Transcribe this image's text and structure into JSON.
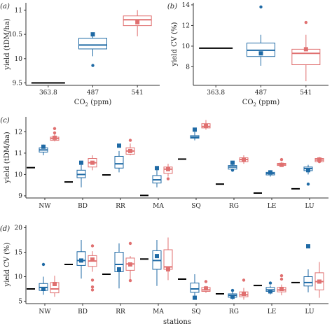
{
  "colors": {
    "co2_487": "#1f6aa5",
    "co2_541": "#e07070",
    "baseline": "#000000"
  },
  "chart_data": [
    {
      "panel_label": "(a)",
      "type": "boxplot",
      "xlabel": "CO2 (ppm)",
      "ylabel": "yield (tDM/ha)",
      "ylim": [
        9.45,
        11.15
      ],
      "yticks": [
        9.5,
        10.0,
        10.5,
        11.0
      ],
      "categories": [
        "363.8",
        "487",
        "541"
      ],
      "baseline": {
        "category": "363.8",
        "value": 9.5
      },
      "boxes": [
        {
          "category": "487",
          "group": "co2_487",
          "whisker_low": 10.05,
          "q1": 10.2,
          "median": 10.28,
          "q3": 10.42,
          "whisker_high": 10.48,
          "mean": 10.5,
          "outliers": [
            9.86
          ]
        },
        {
          "category": "541",
          "group": "co2_541",
          "whisker_low": 10.46,
          "q1": 10.68,
          "median": 10.8,
          "q3": 10.88,
          "whisker_high": 11.0,
          "mean": 10.75,
          "outliers": []
        }
      ]
    },
    {
      "panel_label": "(b)",
      "type": "boxplot",
      "xlabel": "CO2 (ppm)",
      "ylabel": "yield CV (%)",
      "ylim": [
        6.2,
        14.2
      ],
      "yticks": [
        8,
        10,
        12,
        14
      ],
      "categories": [
        "363.8",
        "487",
        "541"
      ],
      "baseline": {
        "category": "363.8",
        "value": 9.8
      },
      "boxes": [
        {
          "category": "487",
          "group": "co2_487",
          "whisker_low": 8.1,
          "q1": 9.0,
          "median": 9.6,
          "q3": 10.3,
          "whisker_high": 11.1,
          "mean": 9.3,
          "outliers": [
            13.8
          ]
        },
        {
          "category": "541",
          "group": "co2_541",
          "whisker_low": 6.6,
          "q1": 8.2,
          "median": 9.3,
          "q3": 9.7,
          "whisker_high": 11.1,
          "mean": 9.7,
          "outliers": [
            12.3
          ]
        }
      ]
    },
    {
      "panel_label": "(c)",
      "type": "boxplot",
      "xlabel": "",
      "ylabel": "yield (tDM/ha)",
      "ylim": [
        8.9,
        12.7
      ],
      "yticks": [
        9,
        10,
        11,
        12
      ],
      "categories": [
        "NW",
        "BD",
        "RR",
        "MA",
        "SQ",
        "RG",
        "LE",
        "LU"
      ],
      "stations": [
        {
          "category": "NW",
          "baseline": 10.32,
          "blue": {
            "whisker_low": 10.9,
            "q1": 11.05,
            "median": 11.15,
            "q3": 11.25,
            "whisker_high": 11.4,
            "mean": 11.3,
            "outliers": []
          },
          "red": {
            "whisker_low": 11.55,
            "q1": 11.6,
            "median": 11.68,
            "q3": 11.75,
            "whisker_high": 11.9,
            "mean": 11.72,
            "outliers": [
              12.15,
              11.95
            ]
          }
        },
        {
          "category": "BD",
          "baseline": 9.65,
          "blue": {
            "whisker_low": 9.4,
            "q1": 9.85,
            "median": 10.0,
            "q3": 10.2,
            "whisker_high": 10.45,
            "mean": 10.55,
            "outliers": []
          },
          "red": {
            "whisker_low": 10.2,
            "q1": 10.35,
            "median": 10.55,
            "q3": 10.75,
            "whisker_high": 10.9,
            "mean": 10.55,
            "outliers": []
          }
        },
        {
          "category": "RR",
          "baseline": 9.98,
          "blue": {
            "whisker_low": 10.1,
            "q1": 10.3,
            "median": 10.5,
            "q3": 10.85,
            "whisker_high": 11.1,
            "mean": 11.35,
            "outliers": []
          },
          "red": {
            "whisker_low": 10.9,
            "q1": 10.95,
            "median": 11.1,
            "q3": 11.25,
            "whisker_high": 11.45,
            "mean": 11.1,
            "outliers": [
              11.6
            ]
          }
        },
        {
          "category": "MA",
          "baseline": 9.02,
          "blue": {
            "whisker_low": 9.4,
            "q1": 9.6,
            "median": 9.75,
            "q3": 9.95,
            "whisker_high": 10.3,
            "mean": 10.3,
            "outliers": []
          },
          "red": {
            "whisker_low": 9.9,
            "q1": 10.05,
            "median": 10.25,
            "q3": 10.35,
            "whisker_high": 10.5,
            "mean": 10.25,
            "outliers": [
              9.8
            ]
          }
        },
        {
          "category": "SQ",
          "baseline": 10.72,
          "blue": {
            "whisker_low": 11.6,
            "q1": 11.7,
            "median": 11.75,
            "q3": 11.82,
            "whisker_high": 12.0,
            "mean": 12.1,
            "outliers": []
          },
          "red": {
            "whisker_low": 12.1,
            "q1": 12.18,
            "median": 12.25,
            "q3": 12.38,
            "whisker_high": 12.55,
            "mean": 12.28,
            "outliers": []
          }
        },
        {
          "category": "RG",
          "baseline": 9.55,
          "blue": {
            "whisker_low": 10.15,
            "q1": 10.25,
            "median": 10.35,
            "q3": 10.42,
            "whisker_high": 10.5,
            "mean": 10.55,
            "outliers": [
              10.2
            ]
          },
          "red": {
            "whisker_low": 10.5,
            "q1": 10.6,
            "median": 10.7,
            "q3": 10.78,
            "whisker_high": 10.9,
            "mean": 10.7,
            "outliers": []
          }
        },
        {
          "category": "LE",
          "baseline": 9.13,
          "blue": {
            "whisker_low": 9.9,
            "q1": 9.98,
            "median": 10.05,
            "q3": 10.1,
            "whisker_high": 10.2,
            "mean": 10.1,
            "outliers": []
          },
          "red": {
            "whisker_low": 10.38,
            "q1": 10.42,
            "median": 10.48,
            "q3": 10.52,
            "whisker_high": 10.58,
            "mean": 10.45,
            "outliers": [
              10.7
            ]
          }
        },
        {
          "category": "LU",
          "baseline": 9.33,
          "blue": {
            "whisker_low": 10.0,
            "q1": 10.18,
            "median": 10.28,
            "q3": 10.35,
            "whisker_high": 10.45,
            "mean": 10.2,
            "outliers": [
              9.55
            ]
          },
          "red": {
            "whisker_low": 10.55,
            "q1": 10.6,
            "median": 10.68,
            "q3": 10.75,
            "whisker_high": 10.82,
            "mean": 10.7,
            "outliers": [
              10.6
            ]
          }
        }
      ]
    },
    {
      "panel_label": "(d)",
      "type": "boxplot",
      "xlabel": "stations",
      "ylabel": "yield CV (%)",
      "ylim": [
        4.5,
        20.5
      ],
      "yticks": [
        5,
        10,
        15,
        20
      ],
      "categories": [
        "NW",
        "BD",
        "RR",
        "MA",
        "SQ",
        "RG",
        "LE",
        "LU"
      ],
      "stations": [
        {
          "category": "NW",
          "baseline": 7.5,
          "blue": {
            "whisker_low": 6.3,
            "q1": 7.2,
            "median": 7.8,
            "q3": 8.6,
            "whisker_high": 10.0,
            "mean": 7.5,
            "outliers": [
              12.5
            ]
          },
          "red": {
            "whisker_low": 5.9,
            "q1": 6.7,
            "median": 7.5,
            "q3": 8.8,
            "whisker_high": 10.2,
            "mean": 8.5,
            "outliers": []
          }
        },
        {
          "category": "BD",
          "baseline": 12.5,
          "blue": {
            "whisker_low": 9.6,
            "q1": 12.3,
            "median": 13.3,
            "q3": 15.1,
            "whisker_high": 17.5,
            "mean": 13.3,
            "outliers": []
          },
          "red": {
            "whisker_low": 11.0,
            "q1": 12.1,
            "median": 13.2,
            "q3": 14.3,
            "whisker_high": 15.2,
            "mean": 13.5,
            "outliers": [
              16.3,
              9.3,
              7.9,
              7.3
            ]
          }
        },
        {
          "category": "RR",
          "baseline": 10.5,
          "blue": {
            "whisker_low": 7.6,
            "q1": 11.0,
            "median": 12.5,
            "q3": 15.0,
            "whisker_high": 16.8,
            "mean": 11.5,
            "outliers": []
          },
          "red": {
            "whisker_low": 9.0,
            "q1": 11.3,
            "median": 12.6,
            "q3": 13.8,
            "whisker_high": 14.2,
            "mean": 12.5,
            "outliers": [
              16.8,
              9.2
            ]
          }
        },
        {
          "category": "MA",
          "baseline": 13.6,
          "blue": {
            "whisker_low": 8.1,
            "q1": 11.5,
            "median": 13.3,
            "q3": 15.3,
            "whisker_high": 17.5,
            "mean": 14.2,
            "outliers": []
          },
          "red": {
            "whisker_low": 9.3,
            "q1": 11.5,
            "median": 12.0,
            "q3": 15.5,
            "whisker_high": 18.0,
            "mean": 11.5,
            "outliers": []
          }
        },
        {
          "category": "SQ",
          "baseline": 9.5,
          "blue": {
            "whisker_low": 5.9,
            "q1": 6.8,
            "median": 7.5,
            "q3": 8.7,
            "whisker_high": 10.5,
            "mean": 5.7,
            "outliers": []
          },
          "red": {
            "whisker_low": 6.7,
            "q1": 7.0,
            "median": 7.3,
            "q3": 7.8,
            "whisker_high": 8.1,
            "mean": 7.6,
            "outliers": [
              9.0,
              7.5
            ]
          }
        },
        {
          "category": "RG",
          "baseline": 6.5,
          "blue": {
            "whisker_low": 5.3,
            "q1": 5.8,
            "median": 6.2,
            "q3": 6.5,
            "whisker_high": 7.0,
            "mean": 5.9,
            "outliers": [
              7.2
            ]
          },
          "red": {
            "whisker_low": 5.3,
            "q1": 5.9,
            "median": 6.3,
            "q3": 6.9,
            "whisker_high": 7.7,
            "mean": 6.5,
            "outliers": [
              9.3
            ]
          }
        },
        {
          "category": "LE",
          "baseline": 8.2,
          "blue": {
            "whisker_low": 6.4,
            "q1": 7.0,
            "median": 7.3,
            "q3": 7.8,
            "whisker_high": 8.2,
            "mean": 7.0,
            "outliers": [
              8.7
            ]
          },
          "red": {
            "whisker_low": 6.2,
            "q1": 6.9,
            "median": 7.3,
            "q3": 7.8,
            "whisker_high": 8.4,
            "mean": 7.5,
            "outliers": [
              10.2,
              9.5
            ]
          }
        },
        {
          "category": "LU",
          "baseline": 8.8,
          "blue": {
            "whisker_low": 6.8,
            "q1": 8.1,
            "median": 8.8,
            "q3": 10.0,
            "whisker_high": 11.5,
            "mean": 16.2,
            "outliers": []
          },
          "red": {
            "whisker_low": 5.7,
            "q1": 7.3,
            "median": 9.0,
            "q3": 10.8,
            "whisker_high": 13.0,
            "mean": 9.0,
            "outliers": []
          }
        }
      ]
    }
  ]
}
